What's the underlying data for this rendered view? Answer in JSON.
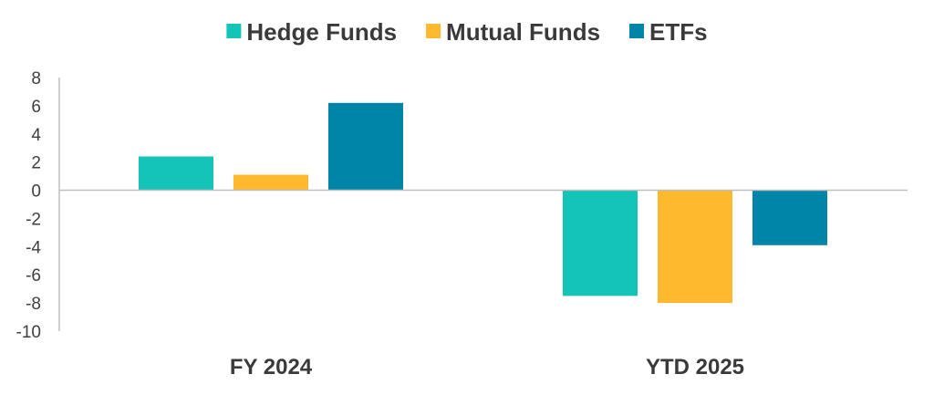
{
  "chart_data": {
    "type": "bar",
    "categories": [
      "FY 2024",
      "YTD 2025"
    ],
    "series": [
      {
        "name": "Hedge Funds",
        "color": "#14c4b8",
        "values": [
          2.4,
          -7.5
        ]
      },
      {
        "name": "Mutual Funds",
        "color": "#ffb92e",
        "values": [
          1.1,
          -8.0
        ]
      },
      {
        "name": "ETFs",
        "color": "#0085a8",
        "values": [
          6.2,
          -3.9
        ]
      }
    ],
    "ylim": [
      -10,
      8
    ],
    "yticks": [
      "8",
      "6",
      "4",
      "2",
      "0",
      "-2",
      "-4",
      "-6",
      "-8",
      "-10"
    ],
    "legend_position": "top-center",
    "grid": false
  }
}
